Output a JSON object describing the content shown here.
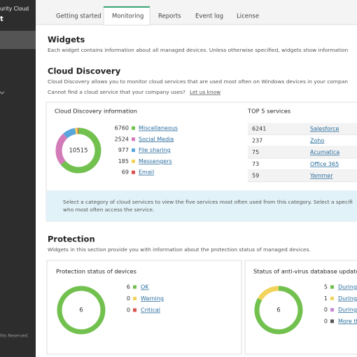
{
  "sidebar": {
    "brand": "urity Cloud",
    "product": "t",
    "footer": "hts Reserved."
  },
  "tabs": [
    "Getting started",
    "Monitoring",
    "Reports",
    "Event log",
    "License"
  ],
  "widgets": {
    "title": "Widgets",
    "description": "Each widget contains information about all managed devices. Unless otherwise specified, widgets show information"
  },
  "cloud_discovery": {
    "title": "Cloud Discovery",
    "description": "Cloud Discovery allows you to monitor cloud services that are used most often on Windows devices in your compan",
    "prompt": "Cannot find a cloud service that your company uses?",
    "link": "Let us know",
    "info_widget": {
      "title": "Cloud Discovery information",
      "total": 10515,
      "segments": [
        {
          "value": 6760,
          "label": "Miscellaneous",
          "color": "#72c14f"
        },
        {
          "value": 2524,
          "label": "Social Media",
          "color": "#d37ab9"
        },
        {
          "value": 977,
          "label": "File sharing",
          "color": "#5aa6dc"
        },
        {
          "value": 185,
          "label": "Messengers",
          "color": "#f2d35c"
        },
        {
          "value": 69,
          "label": "Email",
          "color": "#d9534f"
        }
      ]
    },
    "top_services": {
      "title": "TOP 5 services",
      "rows": [
        [
          6241,
          "Salesforce"
        ],
        [
          237,
          "Zoho"
        ],
        [
          75,
          "Acumatica"
        ],
        [
          73,
          "Office 365"
        ],
        [
          59,
          "Yammer"
        ]
      ]
    },
    "hint": [
      "Select a category of cloud services to view the five services most often used from this category. Select a specifi",
      "who most often access the service."
    ]
  },
  "protection": {
    "title": "Protection",
    "description": "Widgets in this section provide you with information about the protection status of managed devices.",
    "widgets": [
      {
        "title": "Protection status of devices",
        "total": 6,
        "segments": [
          {
            "value": 6,
            "label": "OK",
            "color": "#72c14f"
          },
          {
            "value": 0,
            "label": "Warning",
            "color": "#f2d35c"
          },
          {
            "value": 0,
            "label": "Critical",
            "color": "#d9534f"
          }
        ]
      },
      {
        "title": "Status of anti-virus database updates",
        "total": 6,
        "segments": [
          {
            "value": 5,
            "label": "During",
            "color": "#72c14f"
          },
          {
            "value": 1,
            "label": "During",
            "color": "#f2d35c"
          },
          {
            "value": 0,
            "label": "During",
            "color": "#c58ad6"
          },
          {
            "value": 0,
            "label": "More th",
            "color": "#555555"
          }
        ]
      }
    ]
  }
}
